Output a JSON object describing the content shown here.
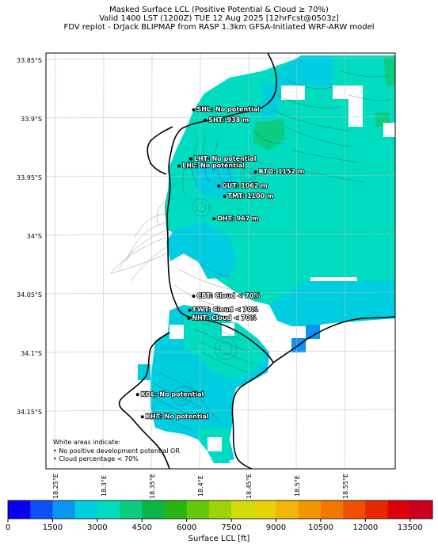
{
  "title": {
    "line1": "Masked Surface LCL (Positive Potential & Cloud ≥ 70%)",
    "line2": "Valid 1400 LST (1200Z) TUE 12 Aug 2025 [12hrFcst@0503z]",
    "line3": "FDV replot - DrJack BLIPMAP from RASP 1.3km GFSA-Initiated WRF-ARW model"
  },
  "lat_ticks": [
    "33.85°S",
    "33.9°S",
    "33.95°S",
    "34°S",
    "34.05°S",
    "34.1°S",
    "34.15°S"
  ],
  "lon_ticks": [
    "18.25°E",
    "18.3°E",
    "18.35°E",
    "18.4°E",
    "18.45°E",
    "18.5°E",
    "18.55°E"
  ],
  "stations": [
    {
      "label": "SHL: No potential",
      "lat": -33.893,
      "lon": 18.393
    },
    {
      "label": "SHT: 938 m",
      "lat": -33.902,
      "lon": 18.405
    },
    {
      "label": "LHT: No potential",
      "lat": -33.935,
      "lon": 18.39
    },
    {
      "label": "LHL: No potential",
      "lat": -33.941,
      "lon": 18.378
    },
    {
      "label": "BTO: 1152 m",
      "lat": -33.946,
      "lon": 18.457
    },
    {
      "label": "GUT: 1062 m",
      "lat": -33.958,
      "lon": 18.419
    },
    {
      "label": "TMT: 1100 m",
      "lat": -33.967,
      "lon": 18.425
    },
    {
      "label": "OHT: 967 m",
      "lat": -33.986,
      "lon": 18.414
    },
    {
      "label": "CBT: Cloud < 70%",
      "lat": -34.052,
      "lon": 18.393
    },
    {
      "label": "FWT: Cloud < 70%",
      "lat": -34.064,
      "lon": 18.389
    },
    {
      "label": "NHT: Cloud < 70%",
      "lat": -34.071,
      "lon": 18.388
    },
    {
      "label": "KOL: No potential",
      "lat": -34.136,
      "lon": 18.335
    },
    {
      "label": "KHT: No potential",
      "lat": -34.155,
      "lon": 18.34
    }
  ],
  "notes": {
    "line1": "White areas indicate:",
    "line2": "• No positive development potential OR",
    "line3": "• Cloud percentage < 70%"
  },
  "colorbar": {
    "label": "Surface LCL [ft]",
    "ticks": [
      "0",
      "1500",
      "3000",
      "4500",
      "6000",
      "7500",
      "9000",
      "10500",
      "12000",
      "13500"
    ],
    "colors": [
      "#0a00f0",
      "#0a50f5",
      "#0a96f0",
      "#00cde0",
      "#00dcc0",
      "#0acd82",
      "#0ab446",
      "#28b414",
      "#64c80a",
      "#a0d20a",
      "#d2dc0a",
      "#e6d20a",
      "#f0b40a",
      "#f09600",
      "#f07800",
      "#f05000",
      "#e62800",
      "#dc000a",
      "#c8001e"
    ]
  },
  "lcl_colors": {
    "primary": "#00dcc0",
    "secondary": "#00cde0",
    "tertiary": "#0acd82",
    "deep": "#0a96f0"
  }
}
